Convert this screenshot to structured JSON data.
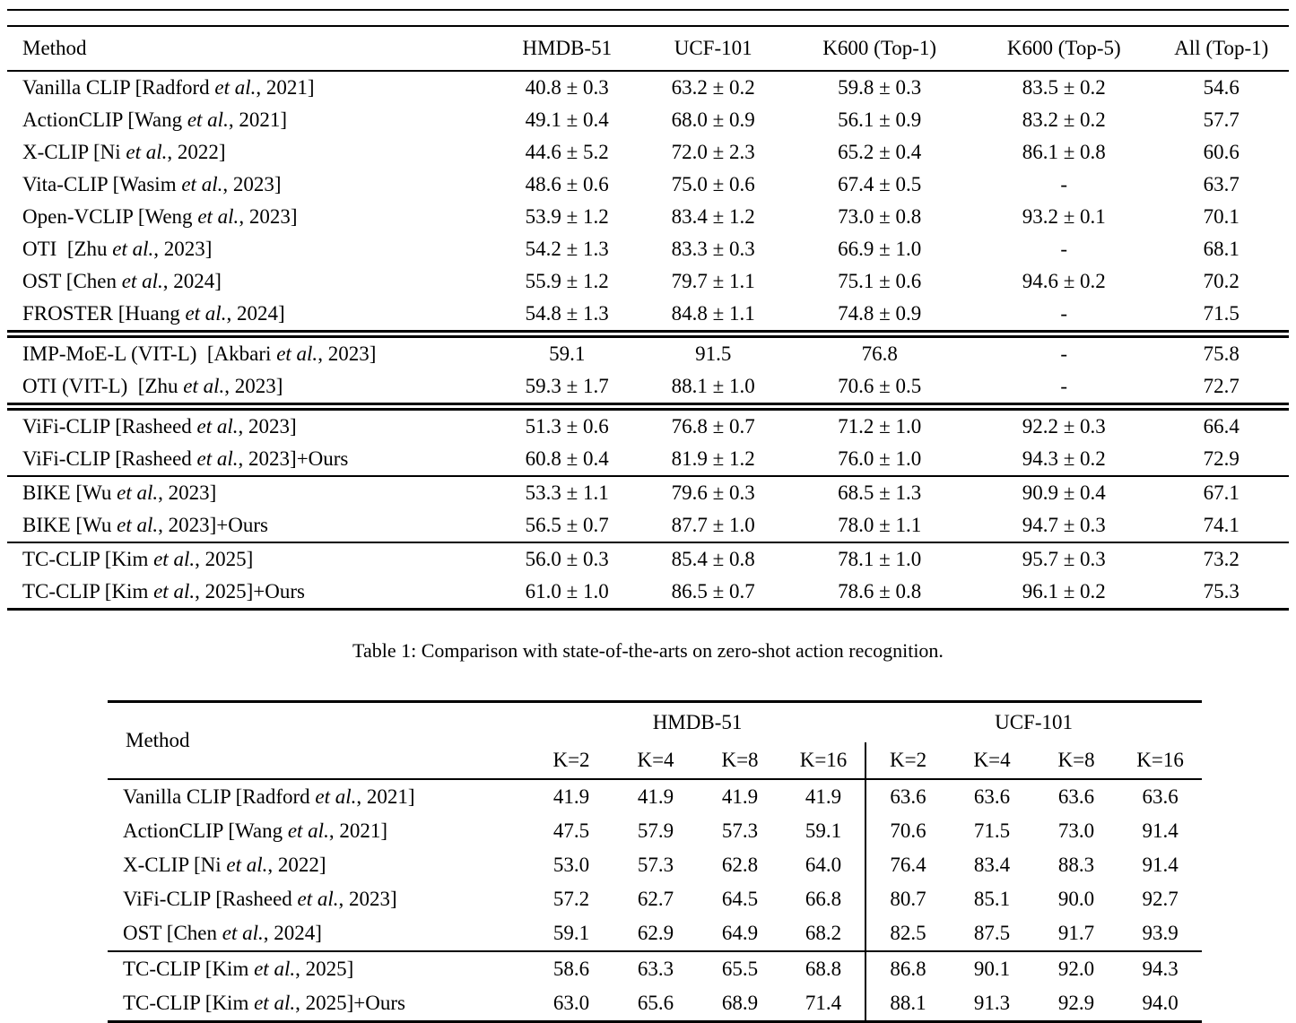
{
  "table1": {
    "caption": "Table 1: Comparison with state-of-the-arts on zero-shot action recognition.",
    "columns": [
      "Method",
      "HMDB-51",
      "UCF-101",
      "K600 (Top-1)",
      "K600 (Top-5)",
      "All (Top-1)"
    ],
    "groups": [
      [
        {
          "method": "Vanilla CLIP [Radford et al., 2021]",
          "values": [
            "40.8 ± 0.3",
            "63.2 ± 0.2",
            "59.8 ± 0.3",
            "83.5 ± 0.2",
            "54.6"
          ]
        },
        {
          "method": "ActionCLIP [Wang et al., 2021]",
          "values": [
            "49.1 ± 0.4",
            "68.0 ± 0.9",
            "56.1 ± 0.9",
            "83.2 ± 0.2",
            "57.7"
          ]
        },
        {
          "method": "X-CLIP [Ni et al., 2022]",
          "values": [
            "44.6 ± 5.2",
            "72.0 ± 2.3",
            "65.2 ± 0.4",
            "86.1 ± 0.8",
            "60.6"
          ]
        },
        {
          "method": "Vita-CLIP [Wasim et al., 2023]",
          "values": [
            "48.6 ± 0.6",
            "75.0 ± 0.6",
            "67.4 ± 0.5",
            "-",
            "63.7"
          ]
        },
        {
          "method": "Open-VCLIP [Weng et al., 2023]",
          "values": [
            "53.9 ± 1.2",
            "83.4 ± 1.2",
            "73.0 ± 0.8",
            "93.2 ± 0.1",
            "70.1"
          ]
        },
        {
          "method": "OTI  [Zhu et al., 2023]",
          "values": [
            "54.2 ± 1.3",
            "83.3 ± 0.3",
            "66.9 ± 1.0",
            "-",
            "68.1"
          ]
        },
        {
          "method": "OST [Chen et al., 2024]",
          "values": [
            "55.9 ± 1.2",
            "79.7 ± 1.1",
            "75.1 ± 0.6",
            "94.6 ± 0.2",
            "70.2"
          ]
        },
        {
          "method": "FROSTER [Huang et al., 2024]",
          "values": [
            "54.8 ± 1.3",
            "84.8 ± 1.1",
            "74.8 ± 0.9",
            "-",
            "71.5"
          ]
        }
      ],
      [
        {
          "method": "IMP-MoE-L (VIT-L)  [Akbari et al., 2023]",
          "values": [
            "59.1",
            "91.5",
            "76.8",
            "-",
            "75.8"
          ]
        },
        {
          "method": "OTI (VIT-L)  [Zhu et al., 2023]",
          "values": [
            "59.3 ± 1.7",
            "88.1 ± 1.0",
            "70.6 ± 0.5",
            "-",
            "72.7"
          ]
        }
      ],
      [
        {
          "method": "ViFi-CLIP [Rasheed et al., 2023]",
          "values": [
            "51.3 ± 0.6",
            "76.8 ± 0.7",
            "71.2 ± 1.0",
            "92.2 ± 0.3",
            "66.4"
          ]
        },
        {
          "method": "ViFi-CLIP [Rasheed et al., 2023]+Ours",
          "values": [
            "60.8 ± 0.4",
            "81.9 ± 1.2",
            "76.0 ± 1.0",
            "94.3 ± 0.2",
            "72.9"
          ]
        }
      ],
      [
        {
          "method": "BIKE [Wu et al., 2023]",
          "values": [
            "53.3 ± 1.1",
            "79.6 ± 0.3",
            "68.5 ± 1.3",
            "90.9 ± 0.4",
            "67.1"
          ]
        },
        {
          "method": "BIKE [Wu et al., 2023]+Ours",
          "values": [
            "56.5 ± 0.7",
            "87.7 ± 1.0",
            "78.0 ± 1.1",
            "94.7 ± 0.3",
            "74.1"
          ]
        }
      ],
      [
        {
          "method": "TC-CLIP [Kim et al., 2025]",
          "values": [
            "56.0 ± 0.3",
            "85.4 ± 0.8",
            "78.1 ± 1.0",
            "95.7 ± 0.3",
            "73.2"
          ]
        },
        {
          "method": "TC-CLIP [Kim et al., 2025]+Ours",
          "values": [
            "61.0 ± 1.0",
            "86.5 ± 0.7",
            "78.6 ± 0.8",
            "96.1 ± 0.2",
            "75.3"
          ]
        }
      ]
    ]
  },
  "table2": {
    "method_label": "Method",
    "group_labels": [
      "HMDB-51",
      "UCF-101"
    ],
    "k_labels": [
      "K=2",
      "K=4",
      "K=8",
      "K=16"
    ],
    "groups": [
      [
        {
          "method": "Vanilla CLIP [Radford et al., 2021]",
          "values": [
            "41.9",
            "41.9",
            "41.9",
            "41.9",
            "63.6",
            "63.6",
            "63.6",
            "63.6"
          ]
        },
        {
          "method": "ActionCLIP [Wang et al., 2021]",
          "values": [
            "47.5",
            "57.9",
            "57.3",
            "59.1",
            "70.6",
            "71.5",
            "73.0",
            "91.4"
          ]
        },
        {
          "method": "X-CLIP [Ni et al., 2022]",
          "values": [
            "53.0",
            "57.3",
            "62.8",
            "64.0",
            "76.4",
            "83.4",
            "88.3",
            "91.4"
          ]
        },
        {
          "method": "ViFi-CLIP [Rasheed et al., 2023]",
          "values": [
            "57.2",
            "62.7",
            "64.5",
            "66.8",
            "80.7",
            "85.1",
            "90.0",
            "92.7"
          ]
        },
        {
          "method": "OST [Chen et al., 2024]",
          "values": [
            "59.1",
            "62.9",
            "64.9",
            "68.2",
            "82.5",
            "87.5",
            "91.7",
            "93.9"
          ]
        }
      ],
      [
        {
          "method": "TC-CLIP [Kim et al., 2025]",
          "values": [
            "58.6",
            "63.3",
            "65.5",
            "68.8",
            "86.8",
            "90.1",
            "92.0",
            "94.3"
          ]
        },
        {
          "method": "TC-CLIP [Kim et al., 2025]+Ours",
          "values": [
            "63.0",
            "65.6",
            "68.9",
            "71.4",
            "88.1",
            "91.3",
            "92.9",
            "94.0"
          ]
        }
      ]
    ]
  }
}
